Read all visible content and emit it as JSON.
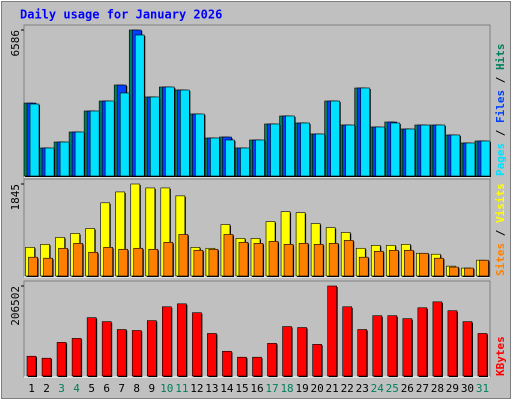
{
  "title": "Daily usage for January 2026",
  "legend_separator": " / ",
  "weekend_color": "#00805c",
  "chart_data": [
    {
      "type": "bar",
      "ylim": [
        0,
        6586
      ],
      "yticks": [
        6586
      ],
      "series": [
        {
          "name": "Hits",
          "color": "#00805c",
          "values": [
            3290,
            1263,
            1533,
            1985,
            2932,
            3383,
            4105,
            6586,
            3564,
            4015,
            3879,
            2797,
            1714,
            1759,
            1263,
            1624,
            2346,
            2707,
            2391,
            1895,
            3383,
            2300,
            3970,
            2210,
            2436,
            2120,
            2300,
            2300,
            1850,
            1489,
            1579
          ]
        },
        {
          "name": "Files",
          "color": "#0040ff",
          "values": [
            3290,
            1263,
            1533,
            1985,
            2932,
            3383,
            4105,
            6586,
            3564,
            4015,
            3879,
            2797,
            1714,
            1759,
            1263,
            1624,
            2346,
            2707,
            2391,
            1895,
            3383,
            2300,
            3970,
            2210,
            2436,
            2120,
            2300,
            2300,
            1850,
            1489,
            1579
          ]
        },
        {
          "name": "Pages",
          "color": "#00e0ff",
          "values": [
            3247,
            1263,
            1533,
            1985,
            2932,
            3383,
            3744,
            6360,
            3564,
            4015,
            3879,
            2797,
            1714,
            1624,
            1263,
            1624,
            2346,
            2707,
            2391,
            1895,
            3383,
            2300,
            3970,
            2210,
            2391,
            2120,
            2300,
            2300,
            1850,
            1489,
            1579
          ]
        }
      ]
    },
    {
      "type": "bar",
      "ylim": [
        0,
        1845
      ],
      "yticks": [
        1845
      ],
      "series": [
        {
          "name": "Visits",
          "color": "#ffff00",
          "values": [
            575,
            635,
            774,
            853,
            952,
            1468,
            1686,
            1845,
            1766,
            1766,
            1607,
            575,
            556,
            1032,
            754,
            754,
            1091,
            1290,
            1270,
            1052,
            972,
            873,
            556,
            615,
            615,
            635,
            456,
            437,
            198,
            159,
            317
          ]
        },
        {
          "name": "Sites",
          "color": "#ff8000",
          "values": [
            377,
            357,
            556,
            655,
            476,
            575,
            536,
            556,
            536,
            675,
            833,
            516,
            536,
            833,
            675,
            655,
            694,
            635,
            655,
            635,
            655,
            714,
            377,
            496,
            516,
            516,
            456,
            357,
            179,
            159,
            317
          ]
        }
      ]
    },
    {
      "type": "bar",
      "ylim": [
        0,
        206502
      ],
      "yticks": [
        206502
      ],
      "categories": [
        "1",
        "2",
        "3",
        "4",
        "5",
        "6",
        "7",
        "8",
        "9",
        "10",
        "11",
        "12",
        "13",
        "14",
        "15",
        "16",
        "17",
        "18",
        "19",
        "20",
        "21",
        "22",
        "23",
        "24",
        "25",
        "26",
        "27",
        "28",
        "29",
        "30",
        "31"
      ],
      "weekend": [
        false,
        false,
        true,
        true,
        false,
        false,
        false,
        false,
        false,
        true,
        true,
        false,
        false,
        false,
        false,
        false,
        true,
        true,
        false,
        false,
        false,
        false,
        false,
        true,
        true,
        false,
        false,
        false,
        false,
        false,
        true
      ],
      "series": [
        {
          "name": "KBytes",
          "color": "#ff0000",
          "values": [
            45380,
            40850,
            77150,
            86230,
            133900,
            124800,
            106650,
            104400,
            127100,
            158850,
            165650,
            145250,
            97580,
            56730,
            43110,
            43110,
            74890,
            113450,
            111200,
            72620,
            206502,
            158850,
            106650,
            138400,
            138400,
            131600,
            156600,
            170200,
            149800,
            124800,
            97580
          ]
        }
      ]
    }
  ]
}
